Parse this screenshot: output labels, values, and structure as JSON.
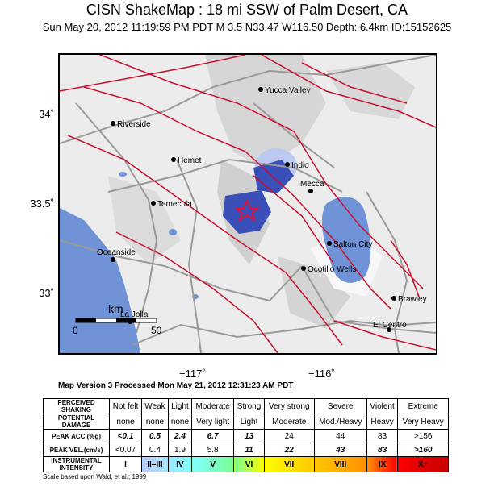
{
  "header": {
    "title": "CISN ShakeMap : 18 mi SSW of Palm Desert, CA",
    "subtitle": "Sun May 20, 2012 11:19:59 PM PDT   M 3.5   N33.47 W116.50   Depth: 6.4km   ID:15152625"
  },
  "map": {
    "lat_labels": [
      "34˚",
      "33.5˚",
      "33˚"
    ],
    "lon_labels": [
      "−117˚",
      "−116˚"
    ],
    "cities": [
      {
        "name": "Yucca Valley"
      },
      {
        "name": "Riverside"
      },
      {
        "name": "Hemet"
      },
      {
        "name": "Indio"
      },
      {
        "name": "Mecca"
      },
      {
        "name": "Temecula"
      },
      {
        "name": "Salton City"
      },
      {
        "name": "Oceanside"
      },
      {
        "name": "Ocotillo Wells"
      },
      {
        "name": "Brawley"
      },
      {
        "name": "La Jolla"
      },
      {
        "name": "El Centro"
      }
    ],
    "scale": {
      "unit": "km",
      "start": "0",
      "end": "50"
    },
    "colors": {
      "ocean": "#6f93d6",
      "fault": "#c8102e",
      "road": "#9a9a9a",
      "terrain": "#ececec",
      "epicenter": "#e0103a"
    },
    "epicenter_icon": "star-icon"
  },
  "map_version": "Map Version 3 Processed Mon May 21, 2012 12:31:23 AM PDT",
  "legend": {
    "perceived_label": "PERCEIVED SHAKING",
    "perceived": [
      "Not felt",
      "Weak",
      "Light",
      "Moderate",
      "Strong",
      "Very strong",
      "Severe",
      "Violent",
      "Extreme"
    ],
    "damage_label": "POTENTIAL DAMAGE",
    "damage": [
      "none",
      "none",
      "none",
      "Very light",
      "Light",
      "Moderate",
      "Mod./Heavy",
      "Heavy",
      "Very Heavy"
    ],
    "pga_label": "PEAK ACC.(%g)",
    "pga": [
      "<0.1",
      "0.5",
      "2.4",
      "6.7",
      "13",
      "24",
      "44",
      "83",
      ">156"
    ],
    "pgv_label": "PEAK VEL.(cm/s)",
    "pgv": [
      "<0.07",
      "0.4",
      "1.9",
      "5.8",
      "11",
      "22",
      "43",
      "83",
      ">160"
    ],
    "intensity_label": "INSTRUMENTAL INTENSITY",
    "intensity": [
      "I",
      "II–III",
      "IV",
      "V",
      "VI",
      "VII",
      "VIII",
      "IX",
      "X+"
    ],
    "intensity_colors": [
      "#ffffff",
      "#bfccff",
      "#a0e6ff",
      "#80ffff",
      "#7aff93",
      "#ffff00",
      "#ffc800",
      "#ff9100",
      "#ff0000"
    ]
  },
  "footnote": "Scale based upon Wald, et al.; 1999"
}
